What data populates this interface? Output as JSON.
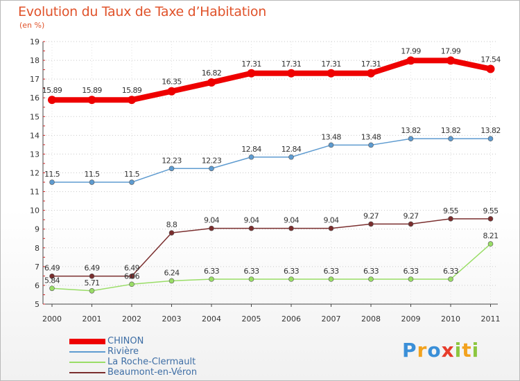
{
  "header": {
    "title": "Evolution du Taux de Taxe d’Habitation",
    "subtitle": "(en %)"
  },
  "chart_data": {
    "type": "line",
    "x": [
      "2000",
      "2001",
      "2002",
      "2003",
      "2004",
      "2005",
      "2006",
      "2007",
      "2008",
      "2009",
      "2010",
      "2011"
    ],
    "yticks": [
      "5",
      "6",
      "7",
      "8",
      "9",
      "10",
      "11",
      "12",
      "13",
      "14",
      "15",
      "16",
      "17",
      "18",
      "19"
    ],
    "ylim": [
      5,
      19
    ],
    "grid": "horizontal dotted",
    "legend_position": "bottom-left",
    "series": [
      {
        "name": "CHINON",
        "color": "#ee0000",
        "values": [
          15.89,
          15.89,
          15.89,
          16.35,
          16.82,
          17.31,
          17.31,
          17.31,
          17.31,
          17.99,
          17.99,
          17.54
        ],
        "labels": [
          "15.89",
          "15.89",
          "15.89",
          "16.35",
          "16.82",
          "17.31",
          "17.31",
          "17.31",
          "17.31",
          "17.99",
          "17.99",
          "17.54"
        ]
      },
      {
        "name": "Rivière",
        "color": "#5e9bd0",
        "values": [
          11.5,
          11.5,
          11.5,
          12.23,
          12.23,
          12.84,
          12.84,
          13.48,
          13.48,
          13.82,
          13.82,
          13.82
        ],
        "labels": [
          "11.5",
          "11.5",
          "11.5",
          "12.23",
          "12.23",
          "12.84",
          "12.84",
          "13.48",
          "13.48",
          "13.82",
          "13.82",
          "13.82"
        ]
      },
      {
        "name": "La Roche-Clermault",
        "color": "#99dd66",
        "values": [
          5.84,
          5.71,
          6.06,
          6.24,
          6.33,
          6.33,
          6.33,
          6.33,
          6.33,
          6.33,
          6.33,
          8.21
        ],
        "labels": [
          "5.84",
          "5.71",
          "6.06",
          "6.24",
          "6.33",
          "6.33",
          "6.33",
          "6.33",
          "6.33",
          "6.33",
          "6.33",
          "8.21"
        ]
      },
      {
        "name": "Beaumont-en-Véron",
        "color": "#7a2e2e",
        "values": [
          6.49,
          6.49,
          6.49,
          8.8,
          9.04,
          9.04,
          9.04,
          9.04,
          9.27,
          9.27,
          9.55,
          9.55
        ],
        "labels": [
          "6.49",
          "6.49",
          "6.49",
          "8.8",
          "9.04",
          "9.04",
          "9.04",
          "9.04",
          "9.27",
          "9.27",
          "9.55",
          "9.55"
        ]
      }
    ]
  },
  "legend": {
    "items": [
      "CHINON",
      "Rivière",
      "La Roche-Clermault",
      "Beaumont-en-Véron"
    ]
  },
  "logo": {
    "text": "Proxiti",
    "letters": [
      {
        "ch": "P",
        "color": "#3a8fd8"
      },
      {
        "ch": "r",
        "color": "#f2a21e"
      },
      {
        "ch": "o",
        "color": "#3a8fd8"
      },
      {
        "ch": "x",
        "color": "#e73c2b"
      },
      {
        "ch": "i",
        "color": "#8cc63f"
      },
      {
        "ch": "t",
        "color": "#f2a21e"
      },
      {
        "ch": "i",
        "color": "#8cc63f"
      }
    ]
  }
}
